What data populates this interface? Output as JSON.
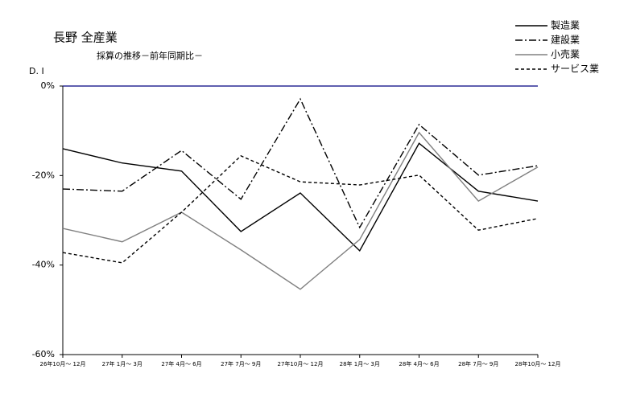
{
  "chart_data": {
    "type": "line",
    "title": "長野 全産業",
    "subtitle": "採算の推移－前年同期比－",
    "y_label": "D. I",
    "categories": [
      "26年10月～ 12月",
      "27年 1月～ 3月",
      "27年 4月～ 6月",
      "27年 7月～ 9月",
      "27年10月～ 12月",
      "28年 1月～ 3月",
      "28年 4月～ 6月",
      "28年 7月～ 9月",
      "28年10月～ 12月"
    ],
    "series": [
      {
        "name": "製造業",
        "color": "#000000",
        "line_style": "solid",
        "values": [
          -14.0,
          -17.2,
          -19.0,
          -32.5,
          -23.9,
          -36.8,
          -12.8,
          -23.5,
          -25.7
        ]
      },
      {
        "name": "建設業",
        "color": "#000000",
        "line_style": "dashdot",
        "values": [
          -23.0,
          -23.5,
          -14.4,
          -25.3,
          -2.9,
          -31.6,
          -8.6,
          -19.9,
          -17.8
        ]
      },
      {
        "name": "小売業",
        "color": "#808080",
        "line_style": "solid",
        "values": [
          -31.8,
          -34.8,
          -28.2,
          -36.6,
          -45.4,
          -34.3,
          -10.4,
          -25.7,
          -18.1
        ]
      },
      {
        "name": "サービス業",
        "color": "#000000",
        "line_style": "dashed",
        "values": [
          -37.2,
          -39.5,
          -28.2,
          -15.6,
          -21.4,
          -22.1,
          -19.9,
          -32.2,
          -29.6
        ]
      }
    ],
    "ylim": [
      -60,
      0
    ],
    "yticks": [
      {
        "value": 0,
        "label": "0%"
      },
      {
        "value": -20,
        "label": "-20%"
      },
      {
        "value": -40,
        "label": "-40%"
      },
      {
        "value": -60,
        "label": "-60%"
      }
    ],
    "zero_line_color": "#000080",
    "grid": false,
    "legend": "top-right"
  }
}
